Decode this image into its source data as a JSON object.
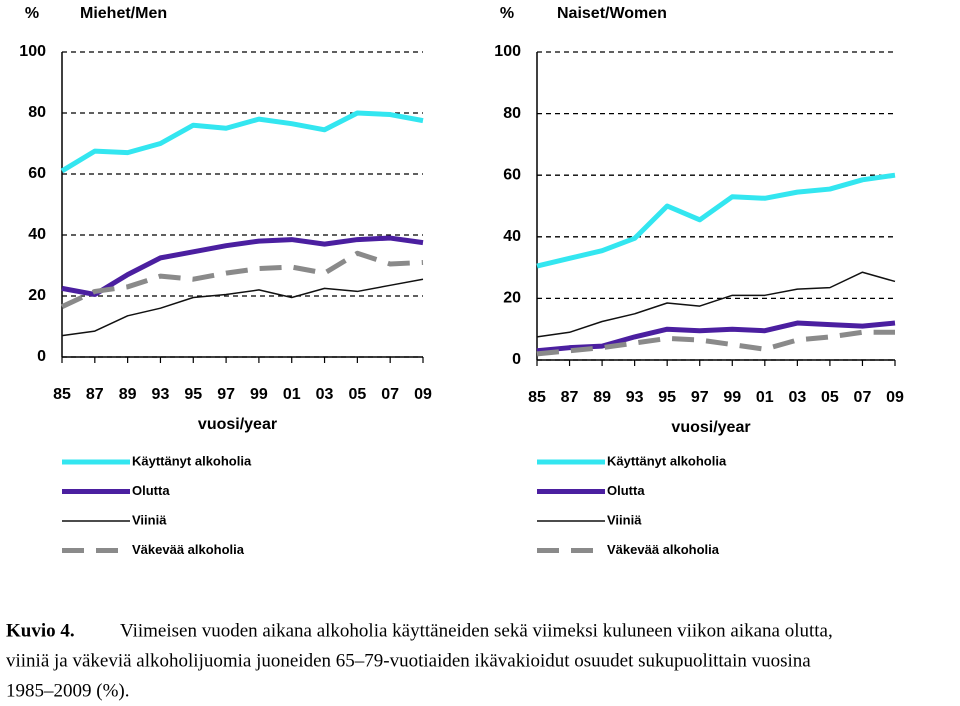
{
  "chart_data": [
    {
      "type": "line",
      "title": "Miehet/Men",
      "ylabel": "%",
      "xlabel": "vuosi/year",
      "categories": [
        "85",
        "87",
        "89",
        "93",
        "95",
        "97",
        "99",
        "01",
        "03",
        "05",
        "07",
        "09"
      ],
      "ylim": [
        0,
        100
      ],
      "yticks": [
        0,
        20,
        40,
        60,
        80,
        100
      ],
      "grid": true,
      "series": [
        {
          "name": "Käyttänyt alkoholia",
          "color": "#33e6f0",
          "values": [
            61,
            67.5,
            67,
            70,
            76,
            75,
            78,
            76.5,
            74.5,
            80,
            79.5,
            77.5
          ]
        },
        {
          "name": "Olutta",
          "color": "#4b1fa0",
          "values": [
            22.5,
            20.5,
            27,
            32.5,
            34.5,
            36.5,
            38,
            38.5,
            37,
            38.5,
            39,
            37.5
          ]
        },
        {
          "name": "Viiniä",
          "color": "#111111",
          "values": [
            7,
            8.5,
            13.5,
            16,
            19.5,
            20.5,
            22,
            19.5,
            22.5,
            21.5,
            23.5,
            25.5
          ]
        },
        {
          "name": "Väkevää alkoholia",
          "color": "#8a8a8a",
          "values": [
            16.5,
            21.5,
            23,
            26.5,
            25.5,
            27.5,
            29,
            29.5,
            27.5,
            34,
            30.5,
            31
          ]
        }
      ]
    },
    {
      "type": "line",
      "title": "Naiset/Women",
      "ylabel": "%",
      "xlabel": "vuosi/year",
      "categories": [
        "85",
        "87",
        "89",
        "93",
        "95",
        "97",
        "99",
        "01",
        "03",
        "05",
        "07",
        "09"
      ],
      "ylim": [
        0,
        100
      ],
      "yticks": [
        0,
        20,
        40,
        60,
        80,
        100
      ],
      "grid": true,
      "series": [
        {
          "name": "Käyttänyt alkoholia",
          "color": "#33e6f0",
          "values": [
            30.5,
            33,
            35.5,
            39.5,
            50,
            45.5,
            53,
            52.5,
            54.5,
            55.5,
            58.5,
            60
          ]
        },
        {
          "name": "Olutta",
          "color": "#4b1fa0",
          "values": [
            3,
            4,
            4.5,
            7.5,
            10,
            9.5,
            10,
            9.5,
            12,
            11.5,
            11,
            12
          ]
        },
        {
          "name": "Viiniä",
          "color": "#111111",
          "values": [
            7.5,
            9,
            12.5,
            15,
            18.5,
            17.5,
            21,
            21,
            23,
            23.5,
            28.5,
            25.5
          ]
        },
        {
          "name": "Väkevää alkoholia",
          "color": "#8a8a8a",
          "values": [
            2,
            3,
            4,
            5.5,
            7,
            6.5,
            5,
            3.5,
            6.5,
            7.5,
            9,
            9
          ]
        }
      ]
    }
  ],
  "caption": {
    "label": "Kuvio 4.",
    "lines": [
      "Viimeisen vuoden aikana alkoholia käyttäneiden sekä viimeksi kuluneen viikon aikana olutta,",
      "viiniä ja väkeviä alkoholijuomia juoneiden 65–79-vuotiaiden ikävakioidut osuudet sukupuolittain vuosina",
      "1985–2009 (%)."
    ]
  }
}
